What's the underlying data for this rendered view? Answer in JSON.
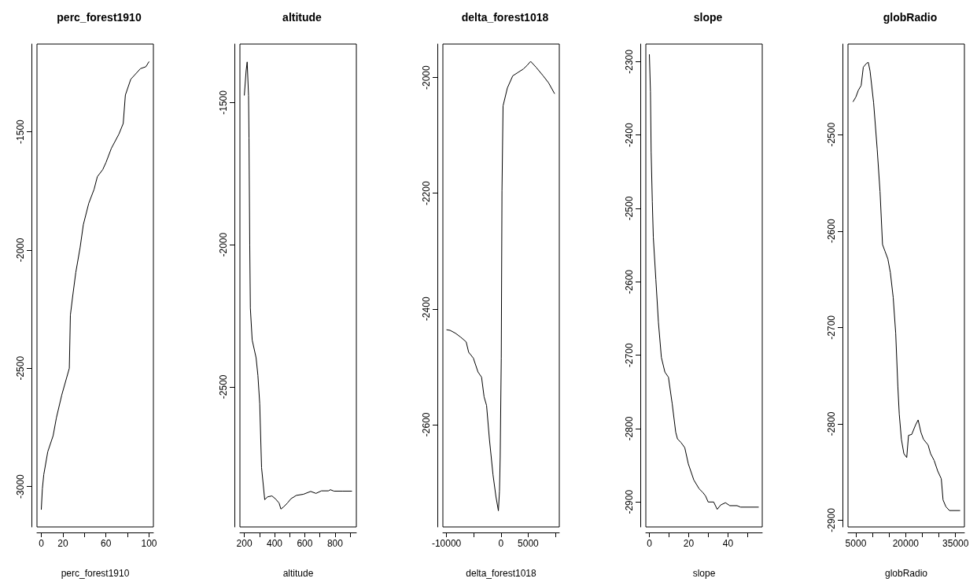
{
  "chart_data": [
    {
      "type": "line",
      "title": "perc_forest1910",
      "xlabel": "perc_forest1910",
      "color": "#000000",
      "x": [
        0,
        1,
        2.3,
        6,
        11,
        14,
        19,
        26,
        27,
        29,
        32,
        36,
        39,
        44,
        49,
        52,
        57,
        60,
        65,
        72,
        76,
        78,
        83,
        92,
        97,
        100
      ],
      "values": [
        -3098,
        -3010,
        -2950,
        -2853,
        -2785,
        -2710,
        -2613,
        -2500,
        -2275,
        -2200,
        -2095,
        -1990,
        -1893,
        -1803,
        -1743,
        -1690,
        -1660,
        -1630,
        -1570,
        -1510,
        -1465,
        -1345,
        -1278,
        -1233,
        -1225,
        -1203
      ],
      "xlim": [
        -4,
        104
      ],
      "ylim": [
        -3171,
        -1129
      ],
      "xticks": [
        0,
        20,
        {
          "value": 40,
          "label": null
        },
        60,
        {
          "value": 80,
          "label": null
        },
        100
      ],
      "yticks": [
        -3000,
        -2500,
        -2000,
        -1500
      ]
    },
    {
      "type": "line",
      "title": "altitude",
      "xlabel": "altitude",
      "color": "#000000",
      "x": [
        200,
        212,
        219,
        228,
        231,
        236,
        240,
        252,
        278,
        290,
        302,
        314,
        335,
        354,
        383,
        406,
        430,
        442,
        461,
        485,
        508,
        544,
        591,
        639,
        674,
        710,
        757,
        769,
        793,
        852,
        912
      ],
      "values": [
        -1475,
        -1388,
        -1357,
        -1475,
        -1625,
        -2000,
        -2223,
        -2335,
        -2398,
        -2460,
        -2560,
        -2784,
        -2897,
        -2887,
        -2884,
        -2894,
        -2909,
        -2930,
        -2922,
        -2909,
        -2894,
        -2882,
        -2878,
        -2868,
        -2875,
        -2866,
        -2866,
        -2862,
        -2867,
        -2867,
        -2867
      ],
      "xlim": [
        171,
        941
      ],
      "ylim": [
        -2993,
        -1294
      ],
      "xticks": [
        200,
        {
          "value": 300,
          "label": null
        },
        400,
        {
          "value": 500,
          "label": null
        },
        600,
        {
          "value": 700,
          "label": null
        },
        800,
        {
          "value": 900,
          "label": null
        }
      ],
      "yticks": [
        -2500,
        -2000,
        -1500
      ]
    },
    {
      "type": "line",
      "title": "delta_forest1018",
      "xlabel": "delta_forest1018",
      "color": "#000000",
      "x": [
        -10000,
        -9342,
        -8355,
        -7368,
        -6381,
        -5921,
        -5066,
        -4211,
        -3553,
        -3092,
        -2632,
        -2105,
        -1447,
        -921,
        -461,
        -263,
        -132,
        66,
        197,
        395,
        1184,
        2171,
        3158,
        4145,
        4803,
        5461,
        6448,
        7764,
        8751,
        9870
      ],
      "values": [
        -2436,
        -2437,
        -2442,
        -2449,
        -2457,
        -2475,
        -2485,
        -2509,
        -2518,
        -2552,
        -2567,
        -2626,
        -2687,
        -2724,
        -2749,
        -2715,
        -2656,
        -2485,
        -2196,
        -2049,
        -2018,
        -1997,
        -1991,
        -1985,
        -1979,
        -1972,
        -1982,
        -1997,
        -2009,
        -2028
      ],
      "xlim": [
        -10660,
        10725
      ],
      "ylim": [
        -2777,
        -1942
      ],
      "xticks": [
        -10000,
        {
          "value": -5000,
          "label": null
        },
        0,
        5000,
        {
          "value": 10000,
          "label": null
        }
      ],
      "yticks": [
        -2600,
        -2400,
        -2200,
        -2000
      ]
    },
    {
      "type": "line",
      "title": "slope",
      "xlabel": "slope",
      "color": "#000000",
      "x": [
        0,
        0.55,
        0.9,
        1.5,
        2,
        3.3,
        4.6,
        6.1,
        7.9,
        9.7,
        11.6,
        13.4,
        14.3,
        16.1,
        18,
        19.8,
        22.6,
        25.3,
        27.2,
        28.6,
        29.9,
        32.7,
        34.5,
        36.3,
        38.7,
        40.9,
        44.6,
        46.4,
        55.6
      ],
      "values": [
        -2290,
        -2341,
        -2423,
        -2491,
        -2539,
        -2597,
        -2655,
        -2703,
        -2723,
        -2730,
        -2766,
        -2805,
        -2814,
        -2819,
        -2826,
        -2848,
        -2870,
        -2882,
        -2887,
        -2892,
        -2900,
        -2900,
        -2910,
        -2904,
        -2901,
        -2905,
        -2905,
        -2907,
        -2907
      ],
      "xlim": [
        -1.8,
        57.4
      ],
      "ylim": [
        -2934,
        -2276
      ],
      "xticks": [
        0,
        {
          "value": 10,
          "label": null
        },
        20,
        {
          "value": 30,
          "label": null
        },
        40,
        {
          "value": 50,
          "label": null
        }
      ],
      "yticks": [
        -2900,
        -2800,
        -2700,
        -2600,
        -2500,
        -2400,
        -2300
      ]
    },
    {
      "type": "line",
      "title": "globRadio",
      "xlabel": "globRadio",
      "color": "#000000",
      "x": [
        4143,
        5000,
        5750,
        6607,
        7250,
        8213,
        8750,
        9284,
        10355,
        11426,
        12283,
        13033,
        13782,
        14639,
        15389,
        16246,
        16995,
        17638,
        18066,
        18709,
        19459,
        20315,
        20851,
        21815,
        22993,
        23743,
        24600,
        25349,
        26741,
        27491,
        28562,
        29633,
        30704,
        31240,
        32096,
        33167,
        36380
      ],
      "values": [
        -2466,
        -2461,
        -2454,
        -2449,
        -2430,
        -2426,
        -2425,
        -2434,
        -2467,
        -2515,
        -2559,
        -2614,
        -2621,
        -2629,
        -2643,
        -2669,
        -2706,
        -2761,
        -2790,
        -2816,
        -2831,
        -2835,
        -2812,
        -2811,
        -2801,
        -2796,
        -2809,
        -2816,
        -2822,
        -2831,
        -2838,
        -2849,
        -2857,
        -2879,
        -2886,
        -2890,
        -2890
      ],
      "xlim": [
        2644,
        37666
      ],
      "ylim": [
        -2907,
        -2406
      ],
      "xticks": [
        5000,
        {
          "value": 10000,
          "label": null
        },
        {
          "value": 15000,
          "label": null
        },
        20000,
        {
          "value": 25000,
          "label": null
        },
        {
          "value": 30000,
          "label": null
        },
        35000
      ],
      "yticks": [
        -2900,
        -2800,
        -2700,
        -2600,
        -2500
      ]
    }
  ]
}
